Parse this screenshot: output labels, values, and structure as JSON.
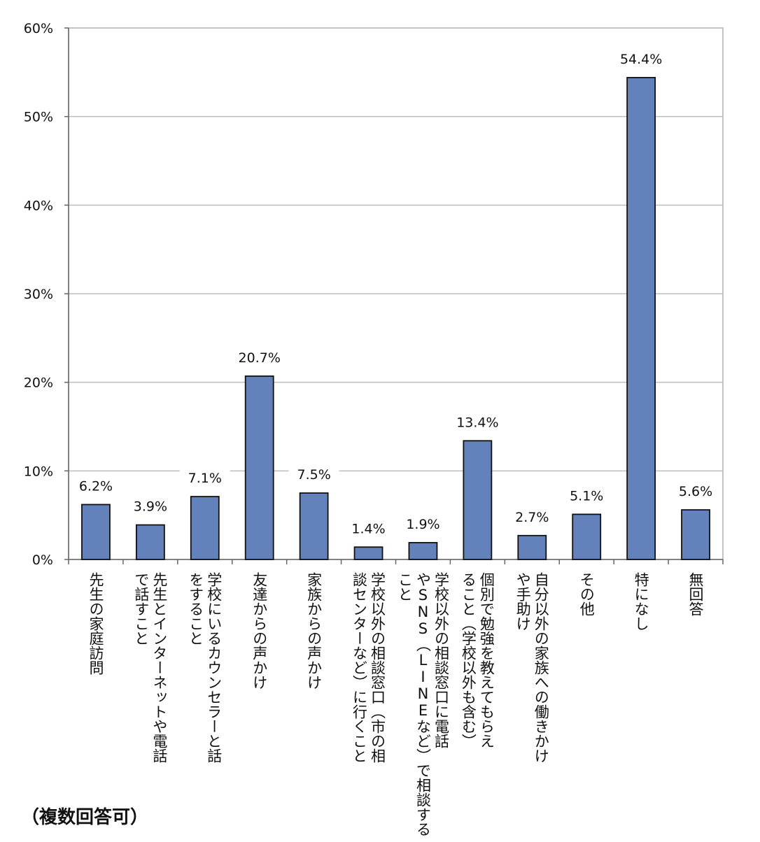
{
  "chart_data": {
    "type": "bar",
    "title": "",
    "xlabel": "",
    "ylabel": "",
    "ylim": [
      0,
      60
    ],
    "y_ticks": [
      0,
      10,
      20,
      30,
      40,
      50,
      60
    ],
    "y_tick_labels": [
      "0%",
      "10%",
      "20%",
      "30%",
      "40%",
      "50%",
      "60%"
    ],
    "grid": true,
    "legend": "none",
    "bar_color": "#6382bb",
    "categories": [
      [
        "先生の家庭訪問"
      ],
      [
        "先生とインターネットや電話",
        "で話すこと"
      ],
      [
        "学校にいるカウンセラーと話",
        "をすること"
      ],
      [
        "友達からの声かけ"
      ],
      [
        "家族からの声かけ"
      ],
      [
        "学校以外の相談窓口（市の相",
        "談センターなど）に行くこと"
      ],
      [
        "学校以外の相談窓口に電話",
        "やSNS（LINEなど）で相談する",
        "こと"
      ],
      [
        "個別で勉強を教えてもらえ",
        "ること（学校以外も含む）"
      ],
      [
        "自分以外の家族への働きかけ",
        "や手助け"
      ],
      [
        "その他"
      ],
      [
        "特になし"
      ],
      [
        "無回答"
      ]
    ],
    "values": [
      6.2,
      3.9,
      7.1,
      20.7,
      7.5,
      1.4,
      1.9,
      13.4,
      2.7,
      5.1,
      54.4,
      5.6
    ],
    "value_labels": [
      "6.2%",
      "3.9%",
      "7.1%",
      "20.7%",
      "7.5%",
      "1.4%",
      "1.9%",
      "13.4%",
      "2.7%",
      "5.1%",
      "54.4%",
      "5.6%"
    ]
  },
  "footnote": "（複数回答可）"
}
